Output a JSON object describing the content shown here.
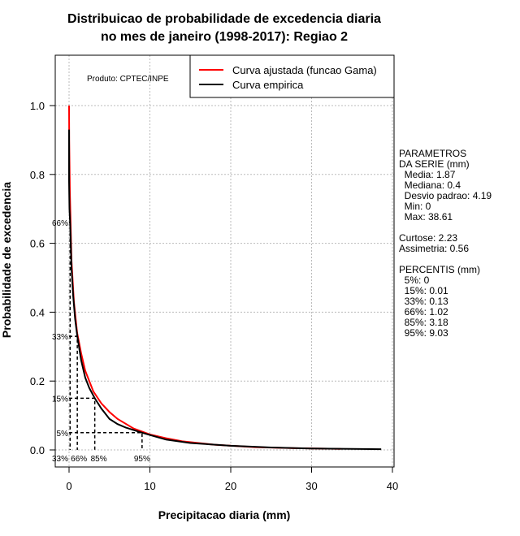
{
  "chart_data": {
    "type": "line",
    "title": [
      "Distribuicao de probabilidade de excedencia diaria",
      "no mes de janeiro (1998-2017): Regiao 2"
    ],
    "xlabel": "Precipitacao diaria (mm)",
    "ylabel": "Probabilidade de excedencia",
    "xlim": [
      -1.7,
      40.2
    ],
    "ylim": [
      -0.05,
      1.14
    ],
    "xticks": [
      0,
      10,
      20,
      30,
      40
    ],
    "yticks": [
      "0.0",
      "0.2",
      "0.4",
      "0.6",
      "0.8",
      "1.0"
    ],
    "grid": true,
    "legend_position": "top-right",
    "product_label": "Produto: CPTEC/INPE",
    "series": [
      {
        "name": "Curva ajustada (funcao Gama)",
        "color": "#ff0000",
        "points": [
          [
            0.0,
            1.0
          ],
          [
            0.02,
            0.9
          ],
          [
            0.1,
            0.75
          ],
          [
            0.3,
            0.55
          ],
          [
            0.6,
            0.43
          ],
          [
            1,
            0.34
          ],
          [
            1.5,
            0.28
          ],
          [
            2,
            0.23
          ],
          [
            3,
            0.17
          ],
          [
            4,
            0.135
          ],
          [
            5,
            0.11
          ],
          [
            6,
            0.09
          ],
          [
            8,
            0.062
          ],
          [
            10,
            0.045
          ],
          [
            12,
            0.034
          ],
          [
            14,
            0.025
          ],
          [
            18,
            0.015
          ],
          [
            23,
            0.008
          ],
          [
            28,
            0.005
          ],
          [
            33.6,
            0.003
          ]
        ]
      },
      {
        "name": "Curva empirica",
        "color": "#000000",
        "points": [
          [
            0,
            0.93
          ],
          [
            0,
            0.78
          ],
          [
            0.05,
            0.7
          ],
          [
            0.13,
            0.66
          ],
          [
            0.3,
            0.53
          ],
          [
            0.5,
            0.45
          ],
          [
            0.75,
            0.38
          ],
          [
            1.02,
            0.33
          ],
          [
            1.5,
            0.26
          ],
          [
            2,
            0.21
          ],
          [
            2.5,
            0.18
          ],
          [
            3.18,
            0.15
          ],
          [
            4,
            0.12
          ],
          [
            5,
            0.09
          ],
          [
            6,
            0.075
          ],
          [
            7,
            0.065
          ],
          [
            9.03,
            0.05
          ],
          [
            10.5,
            0.04
          ],
          [
            12,
            0.03
          ],
          [
            15,
            0.02
          ],
          [
            20,
            0.012
          ],
          [
            25,
            0.007
          ],
          [
            30,
            0.004
          ],
          [
            38.61,
            0.002
          ]
        ]
      }
    ],
    "percentile_markers": [
      {
        "label": "66%",
        "x": 0.13,
        "y": 0.66
      },
      {
        "label": "33%",
        "x": 1.02,
        "y": 0.33
      },
      {
        "label": "15%",
        "x": 3.18,
        "y": 0.15
      },
      {
        "label": "5%",
        "x": 9.03,
        "y": 0.05
      }
    ],
    "bottom_labels": [
      {
        "label": "33%",
        "x": 0.0
      },
      {
        "label": "66%",
        "x": 1.02
      },
      {
        "label": "85%",
        "x": 3.18
      },
      {
        "label": "95%",
        "x": 9.03
      }
    ]
  },
  "side_panel": {
    "lines": [
      "PARAMETROS",
      "DA SERIE (mm)",
      "  Media: 1.87",
      "  Mediana: 0.4",
      "  Desvio padrao: 4.19",
      "  Min: 0",
      "  Max: 38.61",
      "",
      "Curtose: 2.23",
      "Assimetria: 0.56",
      "",
      "PERCENTIS (mm)",
      "  5%: 0",
      "  15%: 0.01",
      "  33%: 0.13",
      "  66%: 1.02",
      "  85%: 3.18",
      "  95%: 9.03"
    ]
  }
}
